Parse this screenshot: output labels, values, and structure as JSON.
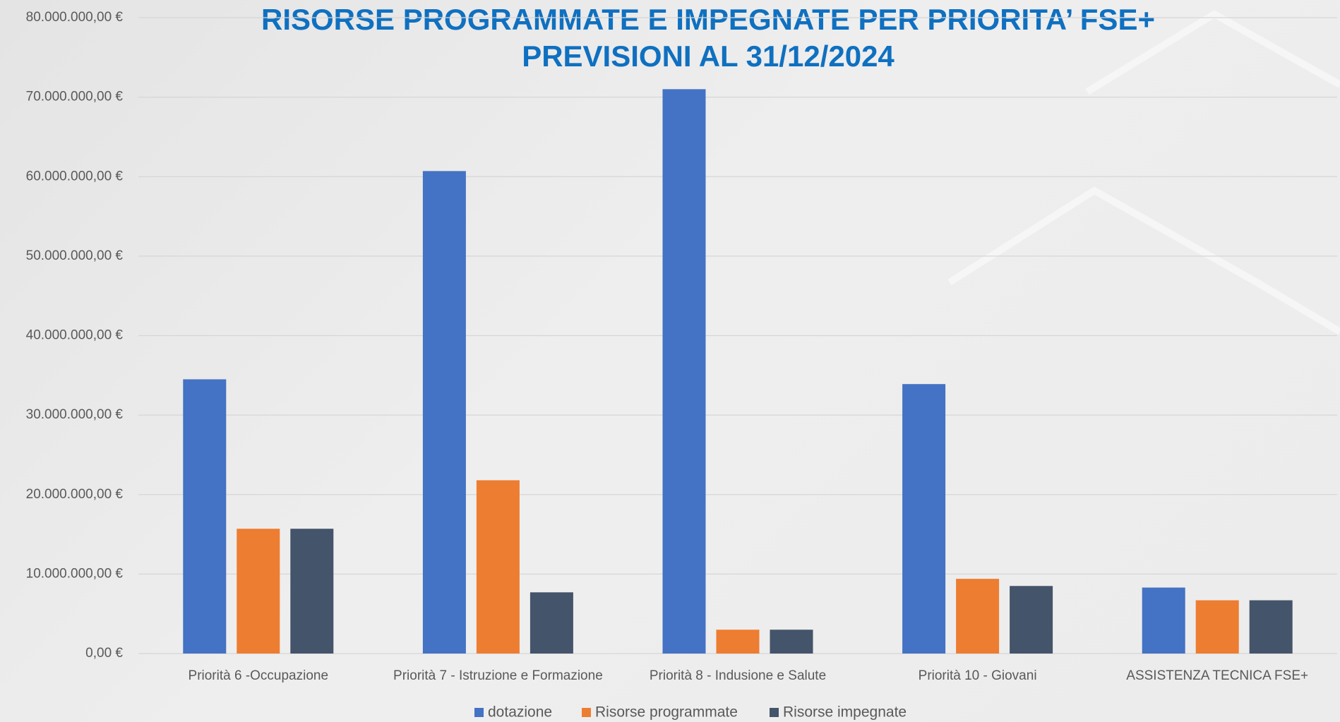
{
  "chart_data": {
    "type": "bar",
    "title": "RISORSE PROGRAMMATE E IMPEGNATE PER PRIORITA’ FSE+",
    "subtitle": "PREVISIONI AL 31/12/2024",
    "categories": [
      "Priorità 6 -Occupazione",
      "Priorità 7 - Istruzione e Formazione",
      "Priorità 8 - Indusione e Salute",
      "Priorità 10 - Giovani",
      "ASSISTENZA TECNICA FSE+"
    ],
    "series": [
      {
        "name": "dotazione",
        "color": "#4472c4",
        "values": [
          34500000,
          60700000,
          71000000,
          33900000,
          8300000
        ]
      },
      {
        "name": "Risorse programmate",
        "color": "#ed7d31",
        "values": [
          15700000,
          21800000,
          3000000,
          9400000,
          6700000
        ]
      },
      {
        "name": "Risorse impegnate",
        "color": "#44546a",
        "values": [
          15700000,
          7700000,
          3000000,
          8500000,
          6700000
        ]
      }
    ],
    "ylim": [
      0,
      80000000
    ],
    "yticks": [
      {
        "value": 0,
        "label": "0,00 €"
      },
      {
        "value": 10000000,
        "label": "10.000.000,00 €"
      },
      {
        "value": 20000000,
        "label": "20.000.000,00 €"
      },
      {
        "value": 30000000,
        "label": "30.000.000,00 €"
      },
      {
        "value": 40000000,
        "label": "40.000.000,00 €"
      },
      {
        "value": 50000000,
        "label": "50.000.000,00 €"
      },
      {
        "value": 60000000,
        "label": "60.000.000,00 €"
      },
      {
        "value": 70000000,
        "label": "70.000.000,00 €"
      },
      {
        "value": 80000000,
        "label": "80.000.000,00 €"
      }
    ],
    "grid": true,
    "legend": "bottom"
  }
}
